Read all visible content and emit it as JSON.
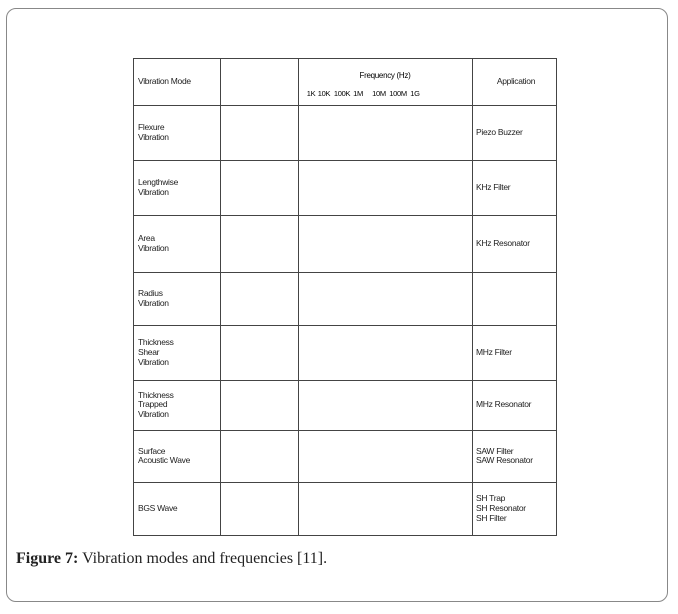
{
  "table": {
    "headers": [
      "Vibration Mode",
      "Frequency (Hz)",
      "Application"
    ],
    "frequency_labels": [
      "1K",
      "10K",
      "100K",
      "1M",
      "10M",
      "100M",
      "1G"
    ],
    "rows": [
      {
        "mode": "Flexure\nVibration",
        "application": "Piezo Buzzer"
      },
      {
        "mode": "Lengthwise\nVibration",
        "application": "KHz Filter"
      },
      {
        "mode": "Area\nVibration",
        "application": "KHz Resonator"
      },
      {
        "mode": "Radius\nVibration"
      },
      {
        "mode": "Thickness\nShear\nVibration",
        "application": "MHz Filter"
      },
      {
        "mode": "Thickness\nTrapped\nVibration",
        "application": "MHz Resonator"
      },
      {
        "mode": "Surface\nAcoustic Wave",
        "application": "SAW Filter\nSAW Resonator"
      },
      {
        "mode": "BGS Wave",
        "application": "SH Trap\nSH Resonator\nSH Filter"
      }
    ]
  },
  "caption": {
    "label": "Figure 7:",
    "text": "Vibration modes and frequencies [11]."
  }
}
